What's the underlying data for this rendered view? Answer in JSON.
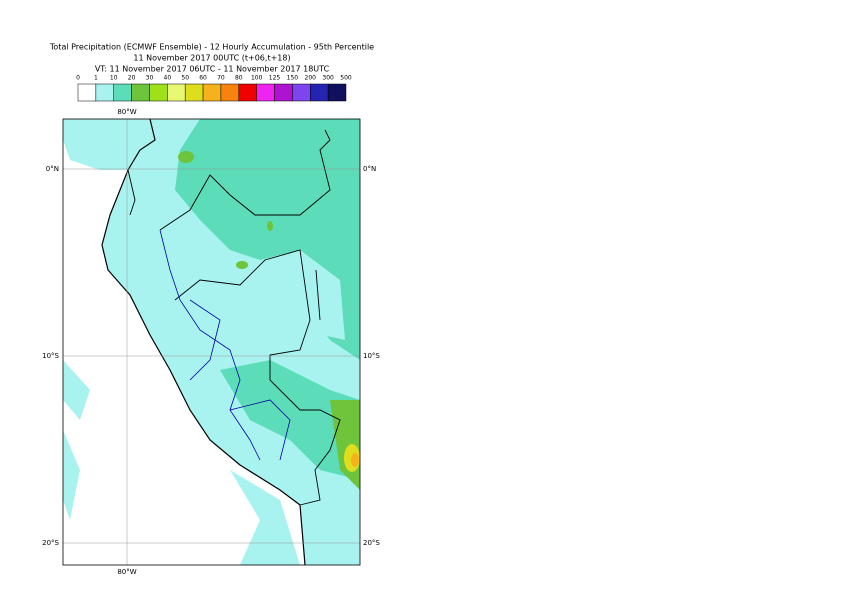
{
  "header": {
    "title": "Total Precipitation (ECMWF Ensemble) - 12 Hourly Accumulation - 95th Percentile",
    "subtitle": "11 November 2017 00UTC (t+06,t+18)",
    "valid_time": "VT: 11 November 2017 06UTC - 11 November 2017 18UTC"
  },
  "legend": {
    "labels": [
      "0",
      "1",
      "10",
      "20",
      "30",
      "40",
      "50",
      "60",
      "70",
      "80",
      "100",
      "125",
      "150",
      "200",
      "300",
      "500"
    ],
    "colors": [
      "#ffffff",
      "#a8f2f0",
      "#5cdcb8",
      "#6ec43a",
      "#9fe01a",
      "#e8f873",
      "#dede1e",
      "#f6b21c",
      "#f8820e",
      "#f00000",
      "#f024f0",
      "#b012d2",
      "#7e44ee",
      "#2424b0",
      "#10105e"
    ]
  },
  "map": {
    "lon_labels_top": [
      "80°W"
    ],
    "lon_labels_bottom": [
      "80°W"
    ],
    "lat_labels_left": [
      "0°N",
      "10°S",
      "20°S"
    ],
    "lat_labels_right": [
      "0°N",
      "10°S",
      "20°S"
    ]
  }
}
